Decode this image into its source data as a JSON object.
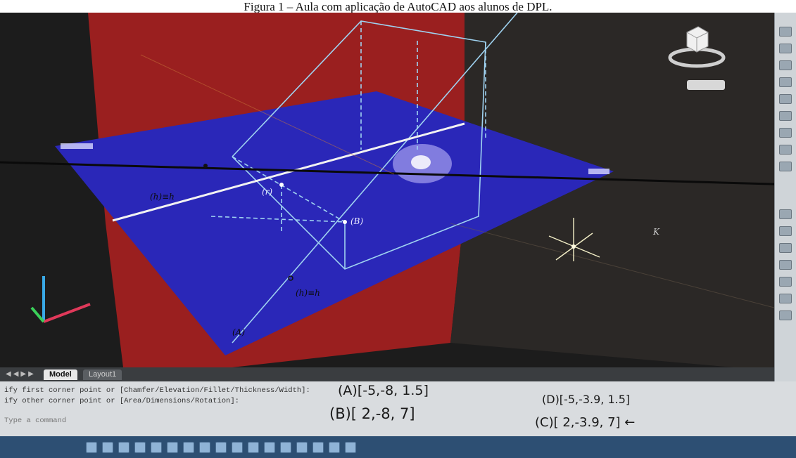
{
  "caption": "Figura 1 – Aula com aplicação de AutoCAD aos alunos de DPL.",
  "drawing": {
    "labels": {
      "h_label": "(h)≡h",
      "r_label": "(r)",
      "b_label": "(B)",
      "h2_label": "(h)≡h",
      "a_label": "(A)",
      "k_label": "K"
    }
  },
  "layout_tabs": [
    "Model",
    "Layout1"
  ],
  "command_line": {
    "line1": "ify first corner point or [Chamfer/Elevation/Fillet/Thickness/Width]:",
    "line2": "ify other corner point or [Area/Dimensions/Rotation]:",
    "prompt": "Type a command"
  },
  "handwritten": {
    "a": "(A)[-5,-8, 1.5]",
    "b": "(B)[ 2,-8, 7]",
    "d": "(D)[-5,-3.9, 1.5]",
    "c": "(C)[ 2,-3.9, 7] ←"
  },
  "colors": {
    "vertical_plane": "#9a1f1f",
    "horizontal_plane": "#2a27b8",
    "background": "#1c1c1c"
  }
}
